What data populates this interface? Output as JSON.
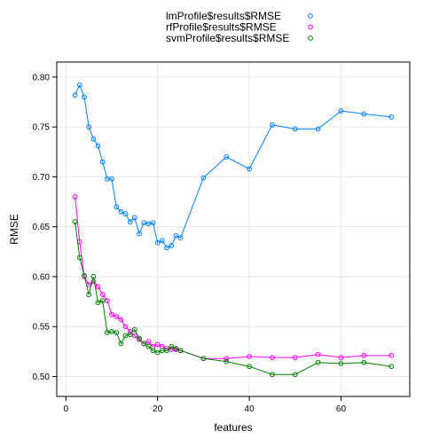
{
  "chart_data": {
    "type": "line",
    "title": "",
    "xlabel": "features",
    "ylabel": "RMSE",
    "xlim": [
      -2,
      75
    ],
    "ylim": [
      0.48,
      0.815
    ],
    "xticks": [
      0,
      20,
      40,
      60
    ],
    "yticks": [
      0.5,
      0.55,
      0.6,
      0.65,
      0.7,
      0.75,
      0.8
    ],
    "grid": true,
    "legend_position": "top-center",
    "series": [
      {
        "name": "lmProfile$results$RMSE",
        "color": "#0080ff",
        "x": [
          2,
          3,
          4,
          5,
          6,
          7,
          8,
          9,
          10,
          11,
          12,
          13,
          14,
          15,
          16,
          17,
          18,
          19,
          20,
          21,
          22,
          23,
          24,
          25,
          30,
          35,
          40,
          45,
          50,
          55,
          60,
          65,
          71
        ],
        "y": [
          0.782,
          0.792,
          0.78,
          0.75,
          0.738,
          0.731,
          0.715,
          0.698,
          0.698,
          0.67,
          0.665,
          0.663,
          0.655,
          0.659,
          0.643,
          0.654,
          0.653,
          0.654,
          0.634,
          0.636,
          0.629,
          0.631,
          0.641,
          0.639,
          0.699,
          0.72,
          0.708,
          0.752,
          0.748,
          0.748,
          0.766,
          0.763,
          0.76
        ]
      },
      {
        "name": "rfProfile$results$RMSE",
        "color": "#ff00ff",
        "x": [
          2,
          3,
          4,
          5,
          6,
          7,
          8,
          9,
          10,
          11,
          12,
          13,
          14,
          15,
          16,
          17,
          18,
          19,
          20,
          21,
          22,
          23,
          24,
          25,
          30,
          35,
          40,
          45,
          50,
          55,
          60,
          65,
          71
        ],
        "y": [
          0.68,
          0.635,
          0.6,
          0.592,
          0.595,
          0.59,
          0.582,
          0.576,
          0.562,
          0.56,
          0.557,
          0.55,
          0.545,
          0.541,
          0.537,
          0.533,
          0.535,
          0.53,
          0.532,
          0.53,
          0.528,
          0.527,
          0.527,
          0.526,
          0.518,
          0.518,
          0.52,
          0.519,
          0.519,
          0.522,
          0.519,
          0.521,
          0.521
        ]
      },
      {
        "name": "svmProfile$results$RMSE",
        "color": "#008000",
        "x": [
          2,
          3,
          4,
          5,
          6,
          7,
          8,
          9,
          10,
          11,
          12,
          13,
          14,
          15,
          16,
          17,
          18,
          19,
          20,
          21,
          22,
          23,
          24,
          25,
          30,
          35,
          40,
          45,
          50,
          55,
          60,
          65,
          71
        ],
        "y": [
          0.655,
          0.619,
          0.601,
          0.582,
          0.6,
          0.574,
          0.576,
          0.544,
          0.545,
          0.544,
          0.533,
          0.541,
          0.542,
          0.547,
          0.538,
          0.533,
          0.53,
          0.526,
          0.524,
          0.526,
          0.526,
          0.53,
          0.528,
          0.526,
          0.518,
          0.515,
          0.51,
          0.502,
          0.502,
          0.514,
          0.513,
          0.514,
          0.51
        ]
      }
    ]
  }
}
